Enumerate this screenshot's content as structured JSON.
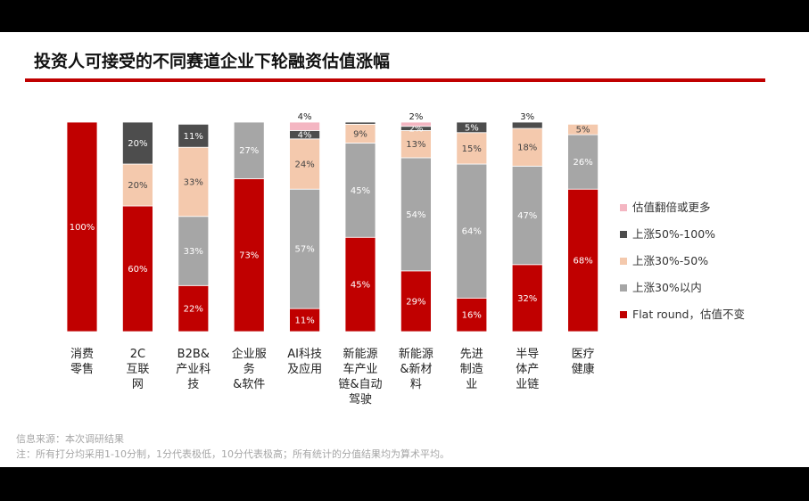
{
  "slide": {
    "title": "投资人可接受的不同赛道企业下轮融资估值涨幅",
    "source": "信息来源：本次调研结果",
    "note": "注：所有打分均采用1-10分制，1分代表极低，10分代表极高；所有统计的分值结果均为算术平均。"
  },
  "colors": {
    "flat": "#c00000",
    "up30": "#a6a6a6",
    "up30_50": "#f4c9ad",
    "up50_100": "#4d4d4d",
    "double": "#f4b6c2"
  },
  "chart_data": {
    "type": "bar",
    "stacked": true,
    "normalized": true,
    "ylim": [
      0,
      100
    ],
    "grid": false,
    "legend_position": "right",
    "categories": [
      [
        "消费",
        "零售"
      ],
      [
        "2C",
        "互联",
        "网"
      ],
      [
        "B2B&",
        "产业科",
        "技"
      ],
      [
        "企业服",
        "务",
        "&软件"
      ],
      [
        "AI科技",
        "及应用"
      ],
      [
        "新能源",
        "车产业",
        "链&自动",
        "驾驶"
      ],
      [
        "新能源",
        "&新材",
        "料"
      ],
      [
        "先进",
        "制造",
        "业"
      ],
      [
        "半导",
        "体产",
        "业链"
      ],
      [
        "医疗",
        "健康"
      ]
    ],
    "series": [
      {
        "name": "Flat round，估值不变",
        "color_key": "flat",
        "values": [
          100,
          60,
          22,
          73,
          11,
          45,
          29,
          16,
          32,
          68
        ]
      },
      {
        "name": "上涨30%以内",
        "color_key": "up30",
        "values": [
          0,
          0,
          33,
          27,
          57,
          45,
          54,
          64,
          47,
          26
        ]
      },
      {
        "name": "上涨30%-50%",
        "color_key": "up30_50",
        "values": [
          0,
          20,
          33,
          0,
          24,
          9,
          13,
          15,
          18,
          5
        ]
      },
      {
        "name": "上涨50%-100%",
        "color_key": "up50_100",
        "values": [
          0,
          20,
          11,
          0,
          4,
          1,
          2,
          5,
          3,
          0
        ]
      },
      {
        "name": "估值翻倍或更多",
        "color_key": "double",
        "values": [
          0,
          0,
          0,
          0,
          4,
          0,
          2,
          0,
          0,
          0
        ]
      }
    ],
    "data_labels": [
      [
        "100%",
        null,
        null,
        null,
        null
      ],
      [
        "60%",
        null,
        "20%",
        "20%",
        null
      ],
      [
        "22%",
        "33%",
        "33%",
        "11%",
        null
      ],
      [
        "73%",
        "27%",
        null,
        null,
        null
      ],
      [
        "11%",
        "57%",
        "24%",
        "4%",
        "4%"
      ],
      [
        "45%",
        "45%",
        "9%",
        null,
        null
      ],
      [
        "29%",
        "54%",
        "13%",
        "2%",
        "2%"
      ],
      [
        "16%",
        "64%",
        "15%",
        "5%",
        null
      ],
      [
        "32%",
        "47%",
        "18%",
        "3%",
        null
      ],
      [
        "68%",
        "26%",
        "5%",
        null,
        null
      ]
    ]
  }
}
